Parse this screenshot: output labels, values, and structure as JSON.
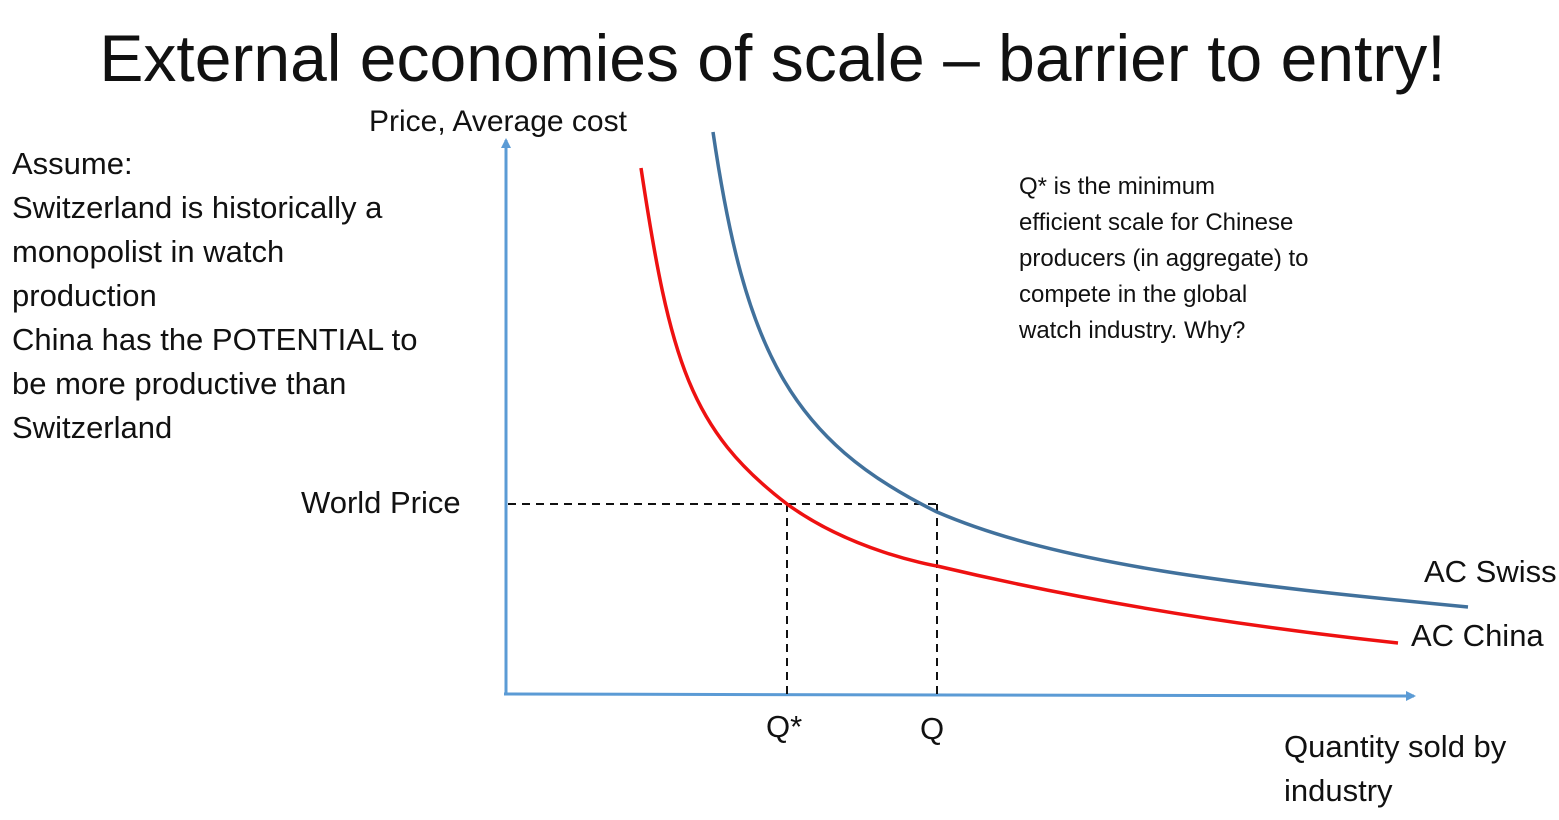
{
  "title": "External economies of scale – barrier to entry!",
  "assumptions": [
    "Assume:",
    "Switzerland is historically a",
    "monopolist in watch",
    "production",
    "China has the POTENTIAL to",
    "be more productive than",
    "Switzerland"
  ],
  "note": [
    "Q* is the minimum",
    "efficient scale for Chinese",
    "producers (in aggregate) to",
    "compete in the global",
    "watch industry. Why?"
  ],
  "diagram": {
    "y_axis_label": "Price, Average cost",
    "x_axis_label_line1": "Quantity sold by",
    "x_axis_label_line2": "industry",
    "world_price_label": "World Price",
    "q_star_label": "Q*",
    "q_label": "Q",
    "curves": [
      {
        "name": "AC Swiss",
        "color": "#41719c"
      },
      {
        "name": "AC China",
        "color": "#ee1111"
      }
    ],
    "axis_color": "#5b9bd5"
  }
}
